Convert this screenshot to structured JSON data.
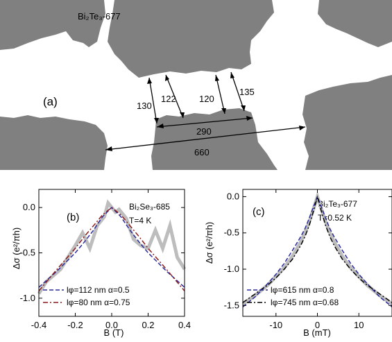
{
  "panel_a": {
    "label": "(a)",
    "sample": "Bi₂Te₃-677",
    "distances": [
      "130",
      "122",
      "120",
      "135",
      "290",
      "660"
    ],
    "colors": {
      "film": "#808080",
      "background": "#ffffff"
    }
  },
  "chart_data": [
    {
      "type": "line",
      "panel": "(b)",
      "annotation": [
        "Bi₂Se₃-685",
        "T=4 K"
      ],
      "xlabel": "B (T)",
      "ylabel": "Δσ (e²/πh)",
      "xlim": [
        -0.4,
        0.4
      ],
      "ylim": [
        -1.2,
        0.2
      ],
      "xticks": [
        "-0.4",
        "-0.2",
        "0.0",
        "0.2",
        "0.4"
      ],
      "yticks": [
        "-1.0",
        "-0.5",
        "0.0"
      ],
      "grid": false,
      "legend_position": "bottom",
      "series": [
        {
          "name": "data",
          "style": "thick-gray",
          "x": [
            -0.4,
            -0.36,
            -0.32,
            -0.28,
            -0.24,
            -0.2,
            -0.16,
            -0.12,
            -0.08,
            -0.04,
            -0.02,
            0,
            0.02,
            0.04,
            0.08,
            0.12,
            0.16,
            0.2,
            0.24,
            0.28,
            0.32,
            0.36,
            0.4
          ],
          "y": [
            -0.95,
            -0.82,
            -0.75,
            -0.68,
            -0.55,
            -0.42,
            -0.28,
            -0.45,
            -0.2,
            -0.1,
            0.05,
            0.0,
            -0.05,
            -0.02,
            -0.12,
            -0.35,
            -0.42,
            -0.45,
            -0.25,
            -0.45,
            -0.2,
            -0.55,
            -0.68
          ]
        },
        {
          "name": "lφ=112 nm α=0.5",
          "style": "dashed",
          "color": "#2a2a9c",
          "x": [
            -0.4,
            -0.3,
            -0.2,
            -0.15,
            -0.1,
            -0.05,
            0,
            0.05,
            0.1,
            0.15,
            0.2,
            0.3,
            0.4
          ],
          "y": [
            -0.88,
            -0.7,
            -0.5,
            -0.38,
            -0.25,
            -0.1,
            0.0,
            -0.1,
            -0.25,
            -0.38,
            -0.5,
            -0.7,
            -0.88
          ]
        },
        {
          "name": "lφ=80 nm α=0.75",
          "style": "dashdot",
          "color": "#8b1a1a",
          "x": [
            -0.4,
            -0.3,
            -0.2,
            -0.15,
            -0.1,
            -0.05,
            0,
            0.05,
            0.1,
            0.15,
            0.2,
            0.3,
            0.4
          ],
          "y": [
            -0.92,
            -0.68,
            -0.45,
            -0.32,
            -0.2,
            -0.08,
            0.0,
            -0.08,
            -0.2,
            -0.32,
            -0.45,
            -0.68,
            -0.92
          ]
        }
      ]
    },
    {
      "type": "line",
      "panel": "(c)",
      "annotation": [
        "Bi₂Te₃-677",
        "T=0.52 K"
      ],
      "xlabel": "B (mT)",
      "ylabel": "Δσ (e²/πh)",
      "xlim": [
        -18,
        18
      ],
      "ylim": [
        -1.65,
        0.1
      ],
      "xticks": [
        "-10",
        "0",
        "10"
      ],
      "yticks": [
        "-1.5",
        "-1.0",
        "-0.5",
        "0.0"
      ],
      "grid": false,
      "legend_position": "bottom",
      "series": [
        {
          "name": "data",
          "style": "thick-gray",
          "x": [
            -18,
            -15,
            -12,
            -10,
            -8,
            -6,
            -4,
            -3,
            -2,
            -1,
            0,
            1,
            2,
            3,
            4,
            6,
            8,
            10,
            12,
            15,
            18
          ],
          "y": [
            -1.48,
            -1.36,
            -1.22,
            -1.1,
            -0.98,
            -0.82,
            -0.62,
            -0.5,
            -0.35,
            -0.18,
            0.0,
            -0.18,
            -0.35,
            -0.5,
            -0.62,
            -0.82,
            -0.98,
            -1.1,
            -1.22,
            -1.36,
            -1.48
          ]
        },
        {
          "name": "lφ=615 nm α=0.8",
          "style": "dashed",
          "color": "#2a2a9c",
          "x": [
            -18,
            -15,
            -12,
            -10,
            -8,
            -6,
            -4,
            -3,
            -2,
            -1,
            0,
            1,
            2,
            3,
            4,
            6,
            8,
            10,
            12,
            15,
            18
          ],
          "y": [
            -1.52,
            -1.38,
            -1.2,
            -1.07,
            -0.92,
            -0.74,
            -0.55,
            -0.44,
            -0.3,
            -0.15,
            0.0,
            -0.15,
            -0.3,
            -0.44,
            -0.55,
            -0.74,
            -0.92,
            -1.07,
            -1.2,
            -1.38,
            -1.52
          ]
        },
        {
          "name": "lφ=745 nm α=0.68",
          "style": "dashdot",
          "color": "#000000",
          "x": [
            -18,
            -15,
            -12,
            -10,
            -8,
            -6,
            -4,
            -3,
            -2,
            -1,
            0,
            1,
            2,
            3,
            4,
            6,
            8,
            10,
            12,
            15,
            18
          ],
          "y": [
            -1.46,
            -1.34,
            -1.22,
            -1.12,
            -1.0,
            -0.86,
            -0.67,
            -0.55,
            -0.4,
            -0.21,
            0.0,
            -0.21,
            -0.4,
            -0.55,
            -0.67,
            -0.86,
            -1.0,
            -1.12,
            -1.22,
            -1.34,
            -1.46
          ]
        }
      ]
    }
  ]
}
